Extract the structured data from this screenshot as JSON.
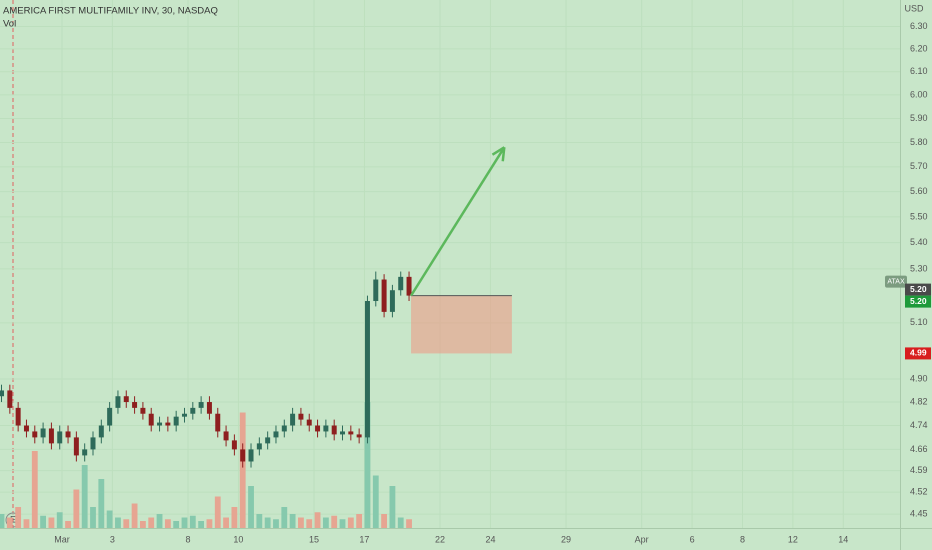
{
  "chart_data": {
    "type": "candlestick",
    "title": "AMERICA FIRST MULTIFAMILY INV, 30, NASDAQ",
    "volume_label": "Vol",
    "currency": "USD",
    "symbol_tag": "ATAX",
    "earnings_marker": "E",
    "log_scale": true,
    "grid": true,
    "up_color": "#2e6b5a",
    "down_color": "#8e1f1f",
    "volume_up_color": "#86c9ad",
    "volume_down_color": "#e6a592",
    "x": [
      -2.4,
      -2.07,
      -1.74,
      -1.41,
      -1.08,
      -0.75,
      -0.42,
      -0.09,
      0.24,
      0.57,
      0.9,
      1.23,
      1.56,
      1.89,
      2.22,
      2.55,
      2.88,
      3.21,
      3.54,
      3.87,
      4.2,
      4.53,
      4.86,
      5.19,
      5.52,
      5.85,
      6.18,
      6.51,
      6.84,
      7.17,
      7.5,
      7.83,
      8.16,
      8.49,
      8.82,
      9.15,
      9.48,
      9.81,
      10.14,
      10.47,
      10.8,
      11.13,
      11.46,
      11.79,
      12.12,
      12.45,
      12.78,
      13.11,
      13.44,
      13.77
    ],
    "open": [
      4.84,
      4.86,
      4.8,
      4.74,
      4.72,
      4.7,
      4.73,
      4.68,
      4.72,
      4.7,
      4.64,
      4.66,
      4.7,
      4.74,
      4.8,
      4.84,
      4.82,
      4.8,
      4.78,
      4.74,
      4.75,
      4.74,
      4.77,
      4.78,
      4.8,
      4.82,
      4.78,
      4.72,
      4.69,
      4.66,
      4.62,
      4.66,
      4.68,
      4.7,
      4.72,
      4.74,
      4.78,
      4.76,
      4.74,
      4.72,
      4.74,
      4.71,
      4.72,
      4.71,
      4.7,
      5.18,
      5.26,
      5.14,
      5.22,
      5.27
    ],
    "high": [
      4.88,
      4.88,
      4.82,
      4.76,
      4.74,
      4.75,
      4.75,
      4.74,
      4.74,
      4.72,
      4.68,
      4.72,
      4.76,
      4.82,
      4.86,
      4.86,
      4.84,
      4.82,
      4.8,
      4.77,
      4.77,
      4.79,
      4.8,
      4.82,
      4.84,
      4.84,
      4.8,
      4.74,
      4.71,
      4.68,
      4.68,
      4.7,
      4.72,
      4.74,
      4.76,
      4.8,
      4.8,
      4.78,
      4.76,
      4.76,
      4.76,
      4.74,
      4.74,
      4.73,
      5.2,
      5.29,
      5.28,
      5.24,
      5.29,
      5.29
    ],
    "low": [
      4.82,
      4.78,
      4.72,
      4.7,
      4.68,
      4.68,
      4.66,
      4.66,
      4.68,
      4.62,
      4.62,
      4.64,
      4.68,
      4.72,
      4.78,
      4.8,
      4.78,
      4.76,
      4.72,
      4.72,
      4.72,
      4.72,
      4.75,
      4.76,
      4.78,
      4.76,
      4.7,
      4.67,
      4.64,
      4.6,
      4.6,
      4.64,
      4.66,
      4.68,
      4.7,
      4.72,
      4.74,
      4.72,
      4.7,
      4.7,
      4.69,
      4.69,
      4.69,
      4.68,
      4.68,
      5.16,
      5.12,
      5.12,
      5.2,
      5.18
    ],
    "close": [
      4.86,
      4.8,
      4.74,
      4.72,
      4.7,
      4.73,
      4.68,
      4.72,
      4.7,
      4.64,
      4.66,
      4.7,
      4.74,
      4.8,
      4.84,
      4.82,
      4.8,
      4.78,
      4.74,
      4.75,
      4.74,
      4.77,
      4.78,
      4.8,
      4.82,
      4.78,
      4.72,
      4.69,
      4.66,
      4.62,
      4.66,
      4.68,
      4.7,
      4.72,
      4.74,
      4.78,
      4.76,
      4.74,
      4.72,
      4.74,
      4.71,
      4.72,
      4.71,
      4.7,
      5.18,
      5.26,
      5.14,
      5.22,
      5.27,
      5.2
    ],
    "volume": [
      40,
      30,
      60,
      25,
      220,
      35,
      30,
      45,
      20,
      110,
      180,
      60,
      140,
      50,
      30,
      25,
      70,
      20,
      30,
      40,
      25,
      20,
      30,
      35,
      20,
      25,
      90,
      30,
      60,
      330,
      120,
      40,
      30,
      25,
      60,
      40,
      30,
      25,
      45,
      30,
      35,
      25,
      30,
      40,
      360,
      150,
      40,
      120,
      30,
      25
    ],
    "vlim": [
      0,
      400
    ],
    "xlim": [
      -2.46,
      33.25
    ],
    "xticks": [
      {
        "value": 0,
        "label": "Mar"
      },
      {
        "value": 2,
        "label": "3"
      },
      {
        "value": 5,
        "label": "8"
      },
      {
        "value": 7,
        "label": "10"
      },
      {
        "value": 10,
        "label": "15"
      },
      {
        "value": 12,
        "label": "17"
      },
      {
        "value": 15,
        "label": "22"
      },
      {
        "value": 17,
        "label": "24"
      },
      {
        "value": 20,
        "label": "29"
      },
      {
        "value": 23,
        "label": "Apr"
      },
      {
        "value": 25,
        "label": "6"
      },
      {
        "value": 27,
        "label": "8"
      },
      {
        "value": 29,
        "label": "12"
      },
      {
        "value": 31,
        "label": "14"
      }
    ],
    "ylim": [
      4.406,
      6.42
    ],
    "yticks": [
      {
        "value": 6.3,
        "label": "6.30"
      },
      {
        "value": 6.2,
        "label": "6.20"
      },
      {
        "value": 6.1,
        "label": "6.10"
      },
      {
        "value": 6.0,
        "label": "6.00"
      },
      {
        "value": 5.9,
        "label": "5.90"
      },
      {
        "value": 5.8,
        "label": "5.80"
      },
      {
        "value": 5.7,
        "label": "5.70"
      },
      {
        "value": 5.6,
        "label": "5.60"
      },
      {
        "value": 5.5,
        "label": "5.50"
      },
      {
        "value": 5.4,
        "label": "5.40"
      },
      {
        "value": 5.3,
        "label": "5.30"
      },
      {
        "value": 5.1,
        "label": "5.10"
      },
      {
        "value": 4.9,
        "label": "4.90"
      },
      4.82,
      4.74,
      4.66,
      4.59,
      4.52,
      4.45
    ],
    "price_labels": [
      {
        "value": 5.2,
        "label": "5.20",
        "color": "#4a4a4a",
        "offset": -6
      },
      {
        "value": 5.2,
        "label": "5.20",
        "color": "#1e9a3a",
        "offset": 6
      },
      {
        "value": 4.99,
        "label": "4.99",
        "color": "#d81e1e",
        "offset": 0
      }
    ],
    "position_box": {
      "x": [
        13.85,
        17.85
      ],
      "y": [
        4.99,
        5.2
      ]
    },
    "arrow": {
      "x": [
        13.85,
        17.55
      ],
      "y": [
        5.2,
        5.78
      ]
    }
  }
}
